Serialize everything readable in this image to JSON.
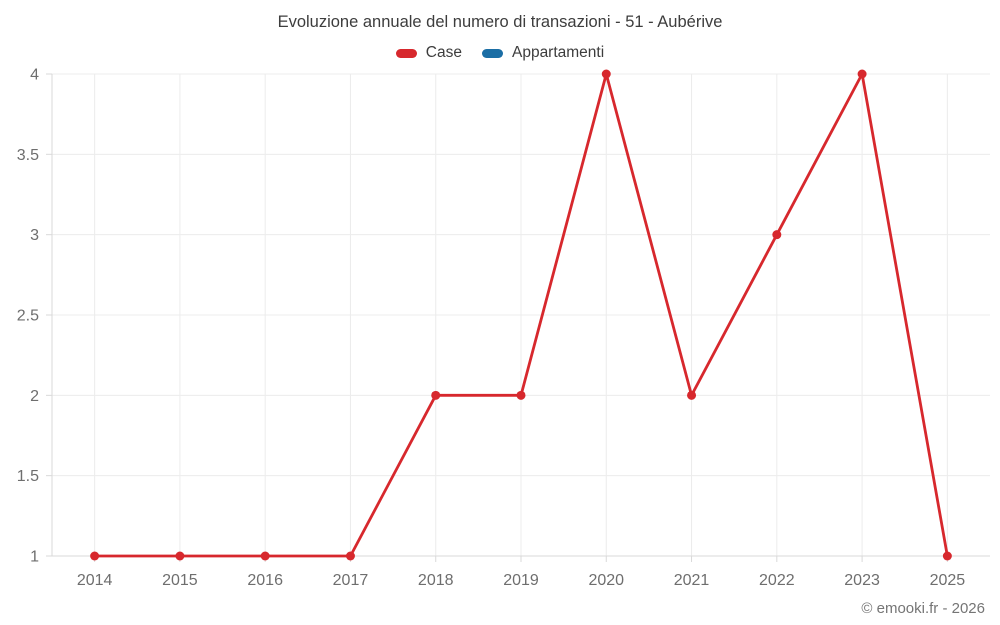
{
  "title": "Evoluzione annuale del numero di transazioni - 51 - Aubérive",
  "legend": {
    "items": [
      {
        "label": "Case",
        "color": "#d7282d"
      },
      {
        "label": "Appartamenti",
        "color": "#1b6ea5"
      }
    ]
  },
  "footer": {
    "credit": "© emooki.fr - 2026"
  },
  "colors": {
    "grid": "#ececec",
    "axis": "#d9d9d9",
    "tick_text": "#6e6e6e",
    "title_text": "#3d3d3d",
    "background": "#ffffff"
  },
  "chart_data": {
    "type": "line",
    "title": "Evoluzione annuale del numero di transazioni - 51 - Aubérive",
    "categories": [
      "2014",
      "2015",
      "2016",
      "2017",
      "2018",
      "2019",
      "2020",
      "2021",
      "2022",
      "2023",
      "2025"
    ],
    "series": [
      {
        "name": "Case",
        "color": "#d7282d",
        "values": [
          1,
          1,
          1,
          1,
          2,
          2,
          4,
          2,
          3,
          4,
          1
        ]
      },
      {
        "name": "Appartamenti",
        "color": "#1b6ea5",
        "values": []
      }
    ],
    "xlabel": "",
    "ylabel": "",
    "ylim": [
      1,
      4
    ],
    "yticks": [
      1,
      1.5,
      2,
      2.5,
      3,
      3.5,
      4
    ],
    "grid": true,
    "legend_position": "top"
  }
}
